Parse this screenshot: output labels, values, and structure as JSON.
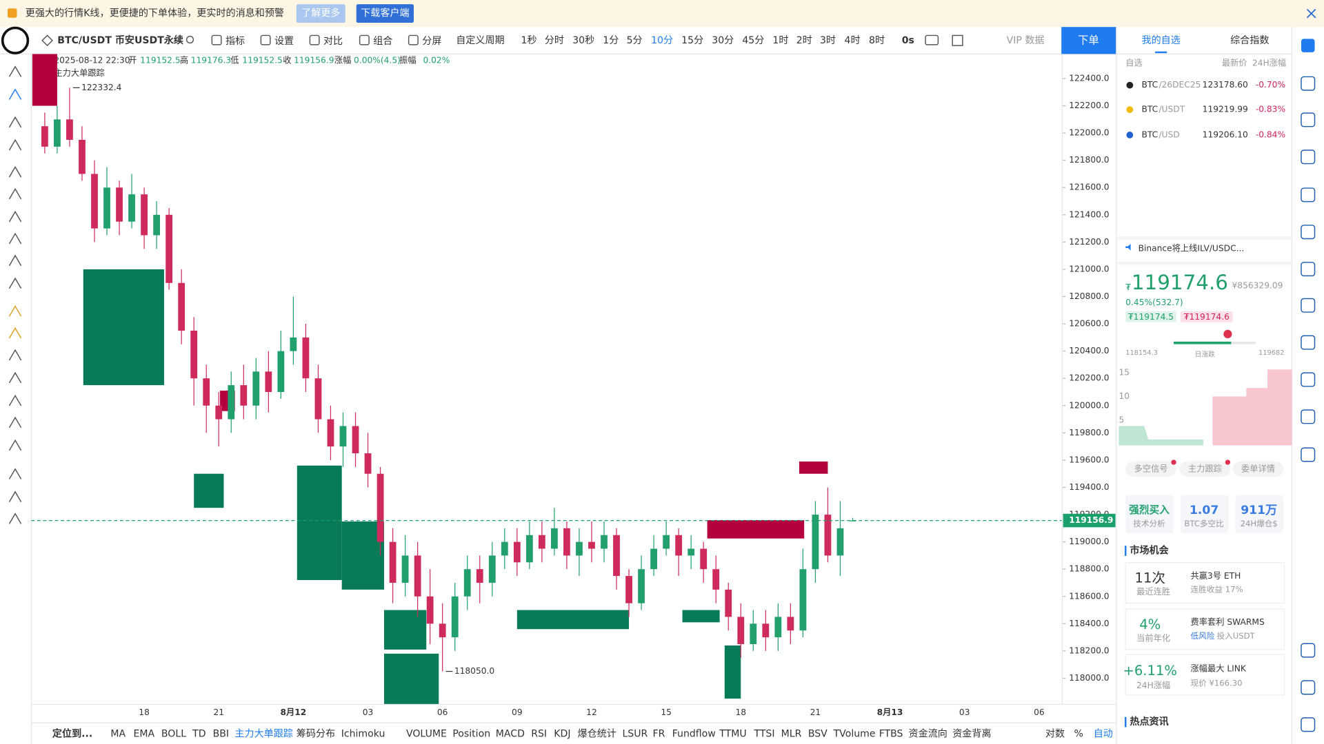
{
  "banner": {
    "text": "更强大的行情K线，更便捷的下单体验，更实时的消息和预警",
    "learn_more": "了解更多",
    "download": "下载客户端"
  },
  "toolbar": {
    "symbol": "BTC/USDT 币安USDT永续",
    "items": [
      "指标",
      "设置",
      "对比",
      "组合",
      "分屏"
    ],
    "period_label": "自定义周期",
    "periods": [
      "1秒",
      "分时",
      "30秒",
      "1分",
      "5分",
      "10分",
      "15分",
      "30分",
      "45分",
      "1时",
      "2时",
      "3时",
      "4时",
      "8时"
    ],
    "active_period": 5,
    "countdown": "0s",
    "vip": "VIP 数据",
    "order": "下单"
  },
  "legend": {
    "date": "2025-08-12 22:30",
    "open": "开",
    "high": "高",
    "low": "低",
    "close": "收",
    "change_label": "涨幅",
    "change": "0.00%(4.5)",
    "amp_label": "振幅",
    "amp": "0.02%",
    "indicator": "主力大单跟踪"
  },
  "chart_data": {
    "type": "candlestick",
    "colors": {
      "up": "#21a06d",
      "down": "#cf2a5c",
      "last": "#1aa06c"
    },
    "ylim": [
      117808,
      122580
    ],
    "yticks": [
      {
        "value": 122400,
        "label": "122400.0"
      },
      {
        "value": 122200,
        "label": "122200.0"
      },
      {
        "value": 122000,
        "label": "122000.0"
      },
      {
        "value": 121800,
        "label": "121800.0"
      },
      {
        "value": 121600,
        "label": "121600.0"
      },
      {
        "value": 121400,
        "label": "121400.0"
      },
      {
        "value": 121200,
        "label": "121200.0"
      },
      {
        "value": 121000,
        "label": "121000.0"
      },
      {
        "value": 120800,
        "label": "120800.0"
      },
      {
        "value": 120600,
        "label": "120600.0"
      },
      {
        "value": 120400,
        "label": "120400.0"
      },
      {
        "value": 120200,
        "label": "120200.0"
      },
      {
        "value": 120000,
        "label": "120000.0"
      },
      {
        "value": 119800,
        "label": "119800.0"
      },
      {
        "value": 119600,
        "label": "119600.0"
      },
      {
        "value": 119400,
        "label": "119400.0"
      },
      {
        "value": 119200,
        "label": "119200.0"
      },
      {
        "value": 119000,
        "label": "119000.0"
      },
      {
        "value": 118800,
        "label": "118800.0"
      },
      {
        "value": 118600,
        "label": "118600.0"
      },
      {
        "value": 118400,
        "label": "118400.0"
      },
      {
        "value": 118200,
        "label": "118200.0"
      },
      {
        "value": 118000,
        "label": "118000.0"
      }
    ],
    "categories": [
      null,
      null,
      null,
      null,
      null,
      null,
      null,
      null,
      "18",
      null,
      null,
      null,
      null,
      null,
      "21",
      null,
      null,
      null,
      null,
      null,
      "8月12",
      null,
      null,
      null,
      null,
      null,
      "03",
      null,
      null,
      null,
      null,
      null,
      "06",
      null,
      null,
      null,
      null,
      null,
      "09",
      null,
      null,
      null,
      null,
      null,
      "12",
      null,
      null,
      null,
      null,
      null,
      "15",
      null,
      null,
      null,
      null,
      null,
      "18",
      null,
      null,
      null,
      null,
      null,
      "21",
      null,
      null,
      null,
      null,
      null,
      "8月13",
      null,
      null,
      null,
      null,
      null,
      "03",
      null,
      null,
      null,
      null,
      null,
      "06",
      null
    ],
    "ohlc": [
      [
        122050,
        122150,
        121850,
        121900
      ],
      [
        121900,
        122200,
        121850,
        122100
      ],
      [
        122100,
        122332.4,
        121900,
        121950
      ],
      [
        121950,
        122050,
        121650,
        121700
      ],
      [
        121700,
        121800,
        121200,
        121300
      ],
      [
        121300,
        121750,
        121250,
        121600
      ],
      [
        121600,
        121650,
        121250,
        121350
      ],
      [
        121350,
        121700,
        121300,
        121550
      ],
      [
        121550,
        121600,
        121150,
        121250
      ],
      [
        121250,
        121500,
        121150,
        121400
      ],
      [
        121400,
        121450,
        120850,
        120900
      ],
      [
        120900,
        121000,
        120450,
        120550
      ],
      [
        120550,
        120650,
        120000,
        120200
      ],
      [
        120200,
        120300,
        119800,
        120000
      ],
      [
        120000,
        120100,
        119700,
        119900
      ],
      [
        119900,
        120250,
        119800,
        120150
      ],
      [
        120150,
        120300,
        119900,
        120000
      ],
      [
        120000,
        120350,
        119900,
        120250
      ],
      [
        120250,
        120400,
        119950,
        120100
      ],
      [
        120100,
        120550,
        120050,
        120400
      ],
      [
        120400,
        120800,
        120300,
        120500
      ],
      [
        120500,
        120600,
        120100,
        120200
      ],
      [
        120200,
        120300,
        119800,
        119900
      ],
      [
        119900,
        120000,
        119600,
        119700
      ],
      [
        119700,
        119950,
        119550,
        119850
      ],
      [
        119850,
        119950,
        119550,
        119650
      ],
      [
        119650,
        119800,
        119400,
        119500
      ],
      [
        119500,
        119550,
        118900,
        119000
      ],
      [
        119000,
        119100,
        118550,
        118700
      ],
      [
        118700,
        119050,
        118600,
        118900
      ],
      [
        118900,
        119000,
        118450,
        118600
      ],
      [
        118600,
        118800,
        118250,
        118400
      ],
      [
        118400,
        118550,
        118050,
        118300
      ],
      [
        118300,
        118700,
        118200,
        118600
      ],
      [
        118600,
        118900,
        118500,
        118800
      ],
      [
        118800,
        118900,
        118550,
        118700
      ],
      [
        118700,
        119000,
        118600,
        118900
      ],
      [
        118900,
        119100,
        118800,
        119000
      ],
      [
        119000,
        119100,
        118750,
        118850
      ],
      [
        118850,
        119150,
        118800,
        119050
      ],
      [
        119050,
        119150,
        118850,
        118950
      ],
      [
        118950,
        119250,
        118900,
        119100
      ],
      [
        119100,
        119150,
        118800,
        118900
      ],
      [
        118900,
        119100,
        118750,
        119000
      ],
      [
        119000,
        119150,
        118850,
        118950
      ],
      [
        118950,
        119150,
        118850,
        119050
      ],
      [
        119050,
        119100,
        118650,
        118750
      ],
      [
        118750,
        118800,
        118450,
        118550
      ],
      [
        118550,
        118900,
        118500,
        118800
      ],
      [
        118800,
        119050,
        118750,
        118950
      ],
      [
        118950,
        119150,
        118900,
        119050
      ],
      [
        119050,
        119100,
        118750,
        118900
      ],
      [
        118900,
        119050,
        118800,
        118950
      ],
      [
        118950,
        119000,
        118700,
        118800
      ],
      [
        118800,
        118900,
        118550,
        118650
      ],
      [
        118650,
        118700,
        118350,
        118450
      ],
      [
        118450,
        118550,
        118150,
        118250
      ],
      [
        118250,
        118500,
        118200,
        118400
      ],
      [
        118400,
        118500,
        118200,
        118300
      ],
      [
        118300,
        118550,
        118200,
        118450
      ],
      [
        118450,
        118550,
        118250,
        118350
      ],
      [
        118350,
        118950,
        118300,
        118800
      ],
      [
        118800,
        119300,
        118700,
        119200
      ],
      [
        119200,
        119400,
        118850,
        118900
      ],
      [
        118900,
        119300,
        118750,
        119100
      ],
      [
        119152.5,
        119176.3,
        119152.5,
        119156.9
      ],
      null,
      null,
      null,
      null,
      null,
      null,
      null,
      null,
      null,
      null,
      null,
      null,
      null,
      null,
      null,
      null
    ],
    "order_blocks": [
      {
        "color": "#b5003f",
        "x0": -1,
        "x1": 1,
        "low": 122200,
        "high": 122580
      },
      {
        "color": "#077a58",
        "x0": 3.1,
        "x1": 9.6,
        "low": 120150,
        "high": 121000
      },
      {
        "color": "#077a58",
        "x0": 12,
        "x1": 14.4,
        "low": 119250,
        "high": 119500
      },
      {
        "color": "#b5003f",
        "x0": 14.1,
        "x1": 15.3,
        "low": 119960,
        "high": 120110
      },
      {
        "color": "#077a58",
        "x0": 20.3,
        "x1": 23.9,
        "low": 118720,
        "high": 119560
      },
      {
        "color": "#077a58",
        "x0": 23.9,
        "x1": 27.3,
        "low": 118650,
        "high": 119150
      },
      {
        "color": "#077a58",
        "x0": 27.3,
        "x1": 30.7,
        "low": 118210,
        "high": 118500
      },
      {
        "color": "#077a58",
        "x0": 27.3,
        "x1": 31.7,
        "low": 117810,
        "high": 118180
      },
      {
        "color": "#077a58",
        "x0": 38,
        "x1": 47,
        "low": 118360,
        "high": 118500
      },
      {
        "color": "#077a58",
        "x0": 51.3,
        "x1": 54.3,
        "low": 118410,
        "high": 118500
      },
      {
        "color": "#077a58",
        "x0": 54.7,
        "x1": 56,
        "low": 117850,
        "high": 118240
      },
      {
        "color": "#b5003f",
        "x0": 53.3,
        "x1": 61.1,
        "low": 119025,
        "high": 119160
      },
      {
        "color": "#b5003f",
        "x0": 60.7,
        "x1": 63,
        "low": 119500,
        "high": 119590
      }
    ],
    "annotations": {
      "high_label": "122332.4",
      "low_label": "118050.0"
    }
  },
  "bottom": {
    "locate": "定位到...",
    "indicators": [
      "MA",
      "EMA",
      "BOLL",
      "TD",
      "BBI",
      "主力大单跟踪",
      "筹码分布",
      "Ichimoku",
      "VOLUME",
      "Position",
      "MACD",
      "RSI",
      "KDJ",
      "爆仓统计",
      "LSUR",
      "FR",
      "Fundflow",
      "TTMU",
      "TTSI",
      "MLR",
      "BSV",
      "TVolume",
      "FTBS",
      "资金流向",
      "资金背离"
    ],
    "active": 5,
    "right": [
      "对数",
      "%",
      "自动"
    ]
  },
  "panel": {
    "tabs": [
      "我的自选",
      "综合指数"
    ],
    "list_header": [
      "自选",
      "最新价",
      "24H涨幅"
    ],
    "watchlist": [
      {
        "symbol": "BTC",
        "quote": "/26DEC25",
        "price": "123178.60",
        "change": "-0.70%"
      },
      {
        "symbol": "BTC",
        "quote": "/USDT",
        "price": "119219.99",
        "change": "-0.83%"
      },
      {
        "symbol": "BTC",
        "quote": "/USD",
        "price": "119206.10",
        "change": "-0.84%"
      }
    ],
    "news": "Binance将上线ILV/USDC...",
    "currency": "₮",
    "price": "119174.6",
    "cny": "¥856329.09",
    "change": "0.45%(532.7)",
    "bid": "₮119174.5",
    "ask": "₮119174.6",
    "range_low": "118154.3",
    "range_label": "日涨跌",
    "range_high": "119682",
    "mini_axis": [
      "15",
      "10",
      "5"
    ],
    "sub_tabs": [
      "多空信号",
      "主力跟踪",
      "委单详情"
    ],
    "stats": [
      {
        "value": "强烈买入",
        "label": "技术分析"
      },
      {
        "value": "1.07",
        "label": "BTC多空比"
      },
      {
        "value": "911万",
        "label": "24H爆仓$"
      }
    ],
    "market_title": "市场机会",
    "cards": [
      {
        "big": "11次",
        "sub": "最近连胜",
        "title": "共赢3号 ETH",
        "desc": "连胜收益 17%"
      },
      {
        "big": "4%",
        "sub": "当前年化",
        "title": "费率套利 SWARMS",
        "tag": "低风险",
        "desc": "投入USDT"
      },
      {
        "big": "+6.11%",
        "sub": "24H涨幅",
        "title": "涨幅最大 LINK",
        "desc": "现价 ¥166.30"
      }
    ],
    "hot_title": "热点资讯"
  }
}
